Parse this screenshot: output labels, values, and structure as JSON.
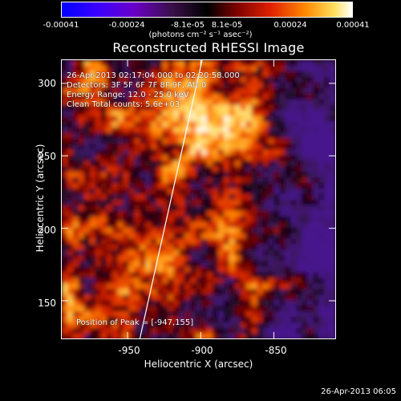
{
  "colorbar": {
    "tick_labels": [
      "-0.00041",
      "-0.00024",
      "-8.1e-05",
      "8.1e-05",
      "0.00024",
      "0.00041"
    ],
    "units_label": "(photons cm⁻² s⁻¹ asec⁻²)",
    "range": [
      -0.00041,
      0.00041
    ]
  },
  "plot": {
    "title": "Reconstructed RHESSI Image",
    "xlabel": "Heliocentric X (arcsec)",
    "ylabel": "Heliocentric Y (arcsec)",
    "x_ticks": [
      "-950",
      "-900",
      "-850"
    ],
    "y_ticks": [
      "150",
      "200",
      "250",
      "300"
    ],
    "xlim": [
      -995,
      -808
    ],
    "ylim": [
      124,
      316
    ]
  },
  "annotations": {
    "time_range": "26-Apr-2013 02:17:04.000 to 02:20:58.000",
    "detectors": "Detectors: 3F 5F 6F 7F 8F 9F, Att 0",
    "energy_range": "Energy Range: 12.0 - 25.0 keV",
    "clean": "Clean    Total counts: 5.6e+03",
    "peak": "Position of Peak = [-947,155]"
  },
  "footer": {
    "date": "26-Apr-2013 06:05"
  },
  "colors": {
    "background": "#000000",
    "foreground": "#ffffff"
  }
}
